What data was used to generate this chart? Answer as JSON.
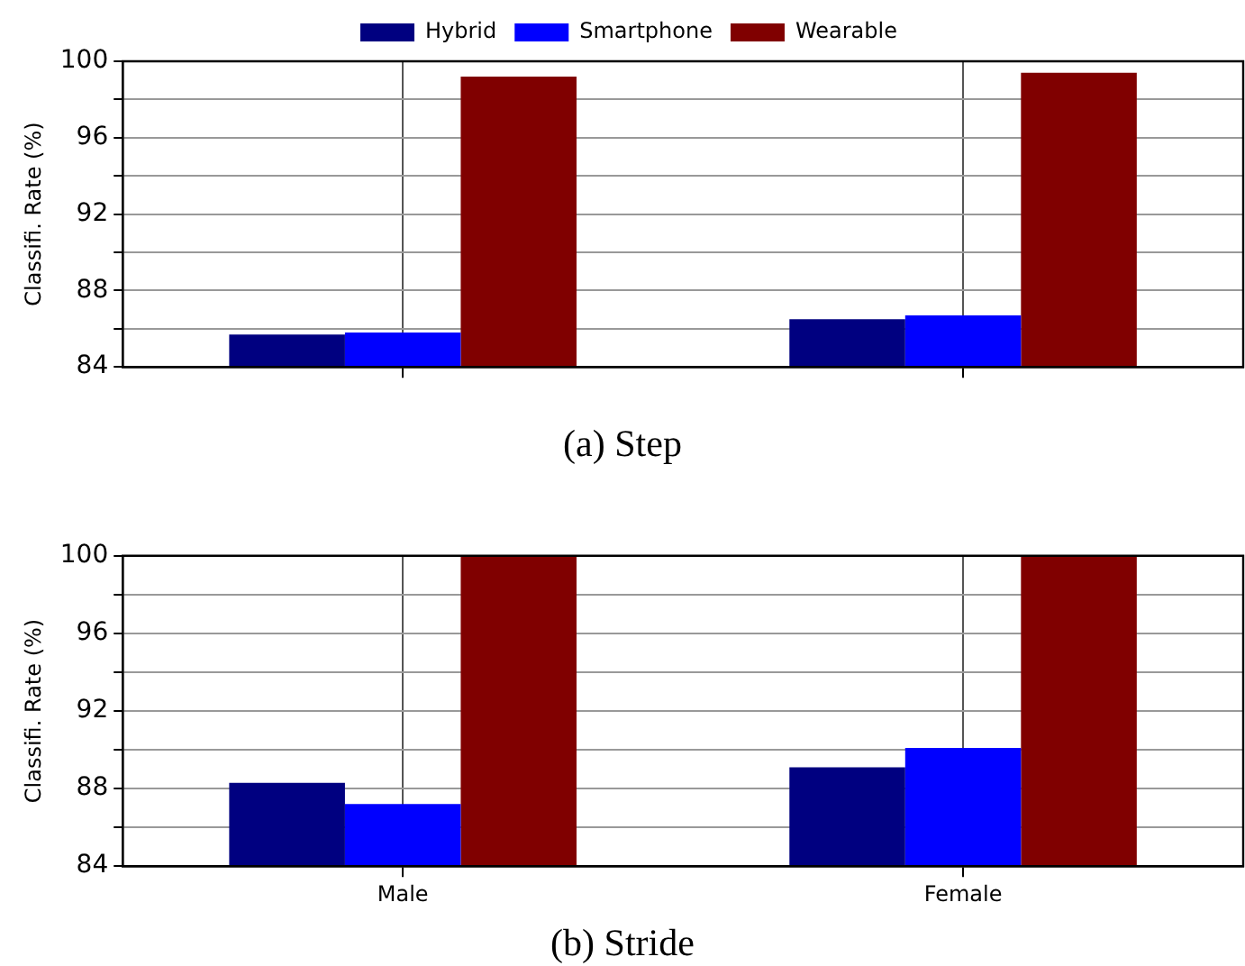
{
  "chart_data": [
    {
      "type": "bar",
      "title": "(a) Step",
      "ylabel": "Classifi. Rate (%)",
      "categories": [
        null,
        null
      ],
      "series": [
        {
          "name": "Hybrid",
          "color": "#000080",
          "values": [
            85.7,
            86.5
          ]
        },
        {
          "name": "Smartphone",
          "color": "#0000ff",
          "values": [
            85.8,
            86.7
          ]
        },
        {
          "name": "Wearable",
          "color": "#800000",
          "values": [
            99.2,
            99.4
          ]
        }
      ],
      "ylim": [
        84,
        100
      ],
      "yticks": [
        84,
        {
          "value": 86,
          "label": null
        },
        88,
        {
          "value": 90,
          "label": null
        },
        92,
        {
          "value": 94,
          "label": null
        },
        96,
        {
          "value": 98,
          "label": null
        },
        100
      ],
      "grid": true,
      "legend": "top"
    },
    {
      "type": "bar",
      "title": "(b) Stride",
      "ylabel": "Classifi. Rate (%)",
      "categories": [
        "Male",
        "Female"
      ],
      "series": [
        {
          "color": "#000080",
          "values": [
            88.3,
            89.1
          ]
        },
        {
          "color": "#0000ff",
          "values": [
            87.2,
            90.1
          ]
        },
        {
          "color": "#800000",
          "values": [
            100,
            100
          ]
        }
      ],
      "ylim": [
        84,
        100
      ],
      "yticks": [
        84,
        {
          "value": 86,
          "label": null
        },
        88,
        {
          "value": 90,
          "label": null
        },
        92,
        {
          "value": 94,
          "label": null
        },
        96,
        {
          "value": 98,
          "label": null
        },
        100
      ],
      "grid": true
    }
  ]
}
